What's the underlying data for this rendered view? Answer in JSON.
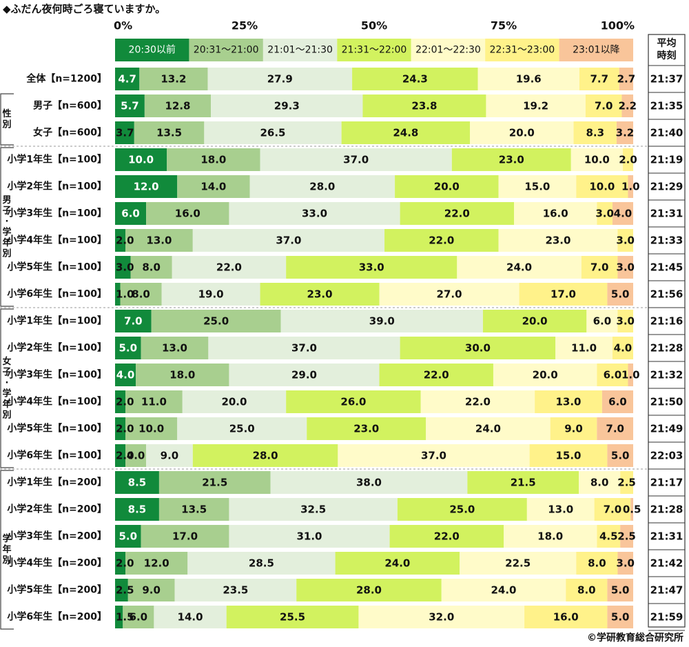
{
  "chart_data": {
    "type": "bar",
    "orientation": "horizontal",
    "stacked": true,
    "title": "◆ふだん夜何時ごろ寝ていますか。",
    "credit": "©学研教育総合研究所",
    "x_ticks": [
      "0%",
      "25%",
      "50%",
      "75%",
      "100%"
    ],
    "xlim": [
      0,
      100
    ],
    "avg_header": "平均時刻",
    "legend_position": "top",
    "series": [
      {
        "name": "20:30以前",
        "color": "#118a3b"
      },
      {
        "name": "20:31～21:00",
        "color": "#a8cf8f"
      },
      {
        "name": "21:01～21:30",
        "color": "#e3efdc"
      },
      {
        "name": "21:31～22:00",
        "color": "#d2f25f"
      },
      {
        "name": "22:01～22:30",
        "color": "#fffbc9"
      },
      {
        "name": "22:31～23:00",
        "color": "#fff28a"
      },
      {
        "name": "23:01以降",
        "color": "#f9c59a"
      }
    ],
    "groups": [
      {
        "label": "",
        "rows": [
          0
        ]
      },
      {
        "label": "性別",
        "rows": [
          1,
          2
        ]
      },
      {
        "label": "男子・学年別",
        "rows": [
          3,
          4,
          5,
          6,
          7,
          8
        ]
      },
      {
        "label": "女子・学年別",
        "rows": [
          9,
          10,
          11,
          12,
          13,
          14
        ]
      },
      {
        "label": "学年別",
        "rows": [
          15,
          16,
          17,
          18,
          19,
          20
        ]
      }
    ],
    "rows": [
      {
        "label": "全体【n=1200】",
        "values": [
          4.7,
          13.2,
          27.9,
          24.3,
          19.6,
          7.7,
          2.7
        ],
        "avg": "21:37"
      },
      {
        "label": "男子【n=600】",
        "values": [
          5.7,
          12.8,
          29.3,
          23.8,
          19.2,
          7.0,
          2.2
        ],
        "avg": "21:35"
      },
      {
        "label": "女子【n=600】",
        "values": [
          3.7,
          13.5,
          26.5,
          24.8,
          20.0,
          8.3,
          3.2
        ],
        "avg": "21:40"
      },
      {
        "label": "小学1年生【n=100】",
        "values": [
          10.0,
          18.0,
          37.0,
          23.0,
          10.0,
          2.0,
          0
        ],
        "avg": "21:19"
      },
      {
        "label": "小学2年生【n=100】",
        "values": [
          12.0,
          14.0,
          28.0,
          20.0,
          15.0,
          10.0,
          1.0
        ],
        "avg": "21:29"
      },
      {
        "label": "小学3年生【n=100】",
        "values": [
          6.0,
          16.0,
          33.0,
          22.0,
          16.0,
          3.0,
          4.0
        ],
        "avg": "21:31"
      },
      {
        "label": "小学4年生【n=100】",
        "values": [
          2.0,
          13.0,
          37.0,
          22.0,
          23.0,
          3.0,
          0
        ],
        "avg": "21:33"
      },
      {
        "label": "小学5年生【n=100】",
        "values": [
          3.0,
          8.0,
          22.0,
          33.0,
          24.0,
          7.0,
          3.0
        ],
        "avg": "21:45"
      },
      {
        "label": "小学6年生【n=100】",
        "values": [
          1.0,
          8.0,
          19.0,
          23.0,
          27.0,
          17.0,
          5.0
        ],
        "avg": "21:56"
      },
      {
        "label": "小学1年生【n=100】",
        "values": [
          7.0,
          25.0,
          39.0,
          20.0,
          6.0,
          3.0,
          0
        ],
        "avg": "21:16"
      },
      {
        "label": "小学2年生【n=100】",
        "values": [
          5.0,
          13.0,
          37.0,
          30.0,
          11.0,
          4.0,
          0
        ],
        "avg": "21:28"
      },
      {
        "label": "小学3年生【n=100】",
        "values": [
          4.0,
          18.0,
          29.0,
          22.0,
          20.0,
          6.0,
          1.0
        ],
        "avg": "21:32"
      },
      {
        "label": "小学4年生【n=100】",
        "values": [
          2.0,
          11.0,
          20.0,
          26.0,
          22.0,
          13.0,
          6.0
        ],
        "avg": "21:50"
      },
      {
        "label": "小学5年生【n=100】",
        "values": [
          2.0,
          10.0,
          25.0,
          23.0,
          24.0,
          9.0,
          7.0
        ],
        "avg": "21:49"
      },
      {
        "label": "小学6年生【n=100】",
        "values": [
          2.0,
          4.0,
          9.0,
          28.0,
          37.0,
          15.0,
          5.0
        ],
        "avg": "22:03"
      },
      {
        "label": "小学1年生【n=200】",
        "values": [
          8.5,
          21.5,
          38.0,
          21.5,
          8.0,
          2.5,
          0
        ],
        "avg": "21:17"
      },
      {
        "label": "小学2年生【n=200】",
        "values": [
          8.5,
          13.5,
          32.5,
          25.0,
          13.0,
          7.0,
          0.5
        ],
        "avg": "21:28"
      },
      {
        "label": "小学3年生【n=200】",
        "values": [
          5.0,
          17.0,
          31.0,
          22.0,
          18.0,
          4.5,
          2.5
        ],
        "avg": "21:31"
      },
      {
        "label": "小学4年生【n=200】",
        "values": [
          2.0,
          12.0,
          28.5,
          24.0,
          22.5,
          8.0,
          3.0
        ],
        "avg": "21:42"
      },
      {
        "label": "小学5年生【n=200】",
        "values": [
          2.5,
          9.0,
          23.5,
          28.0,
          24.0,
          8.0,
          5.0
        ],
        "avg": "21:47"
      },
      {
        "label": "小学6年生【n=200】",
        "values": [
          1.5,
          6.0,
          14.0,
          25.5,
          32.0,
          16.0,
          5.0
        ],
        "avg": "21:59"
      }
    ]
  }
}
